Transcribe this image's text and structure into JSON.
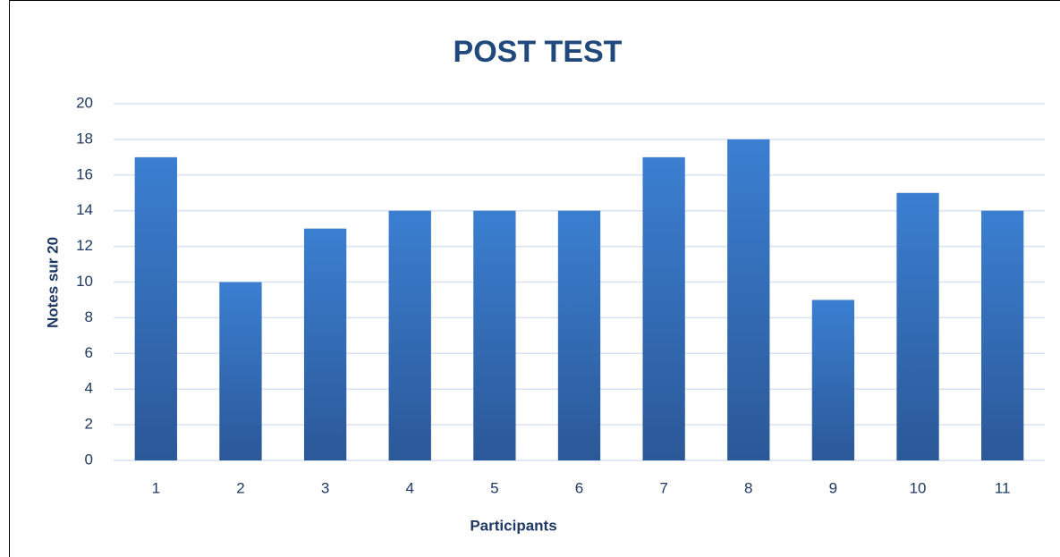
{
  "chart_data": {
    "type": "bar",
    "title": "POST TEST",
    "x_label": "Participants",
    "y_label": "Notes sur 20",
    "categories": [
      "1",
      "2",
      "3",
      "4",
      "5",
      "6",
      "7",
      "8",
      "9",
      "10",
      "11"
    ],
    "values": [
      17,
      10,
      13,
      14,
      14,
      14,
      17,
      18,
      9,
      15,
      14
    ],
    "color": "#3b7fd1",
    "ylim": [
      0,
      20
    ],
    "yticks": [
      0,
      2,
      4,
      6,
      8,
      10,
      12,
      14,
      16,
      18,
      20
    ],
    "grid": true
  }
}
